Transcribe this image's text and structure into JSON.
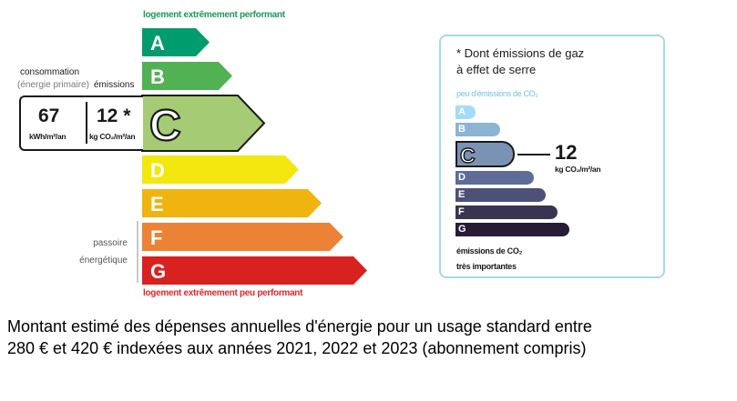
{
  "dpe": {
    "top_caption": "logement extrêmement performant",
    "bottom_caption": "logement extrêmement peu performant",
    "classes": [
      {
        "letter": "A",
        "color": "#009c6d"
      },
      {
        "letter": "B",
        "color": "#52b153"
      },
      {
        "letter": "C",
        "color": "#a5cc74"
      },
      {
        "letter": "D",
        "color": "#f4e70f"
      },
      {
        "letter": "E",
        "color": "#f0b40f"
      },
      {
        "letter": "F",
        "color": "#eb8235"
      },
      {
        "letter": "G",
        "color": "#d7221f"
      }
    ],
    "current_class": "C",
    "consumption_label": "consommation",
    "consumption_sublabel": "(énergie primaire)",
    "emissions_label": "émissions",
    "consumption_value": "67",
    "consumption_unit": "kWh/m²/an",
    "emissions_value": "12 *",
    "emissions_unit": "kg CO₂/m²/an",
    "passoire_line1": "passoire",
    "passoire_line2": "énergétique"
  },
  "ges": {
    "title_line1": "* Dont émissions de gaz",
    "title_line2": "à effet de serre",
    "top_caption": "peu d'émissions de CO₂",
    "classes": [
      {
        "letter": "A",
        "color": "#a4dbf8"
      },
      {
        "letter": "B",
        "color": "#8cb4d3"
      },
      {
        "letter": "C",
        "color": "#7792b1"
      },
      {
        "letter": "D",
        "color": "#5d6d97"
      },
      {
        "letter": "E",
        "color": "#4d5177"
      },
      {
        "letter": "F",
        "color": "#393551"
      },
      {
        "letter": "G",
        "color": "#281b35"
      }
    ],
    "current_class": "C",
    "value": "12",
    "unit": "kg CO₂/m²/an",
    "bottom_line1": "émissions de CO₂",
    "bottom_line2": "très importantes"
  },
  "cost": {
    "line1": "Montant estimé des dépenses annuelles d'énergie pour un usage standard entre",
    "line2": "280 € et 420 € indexées aux années 2021, 2022 et 2023 (abonnement compris)"
  }
}
